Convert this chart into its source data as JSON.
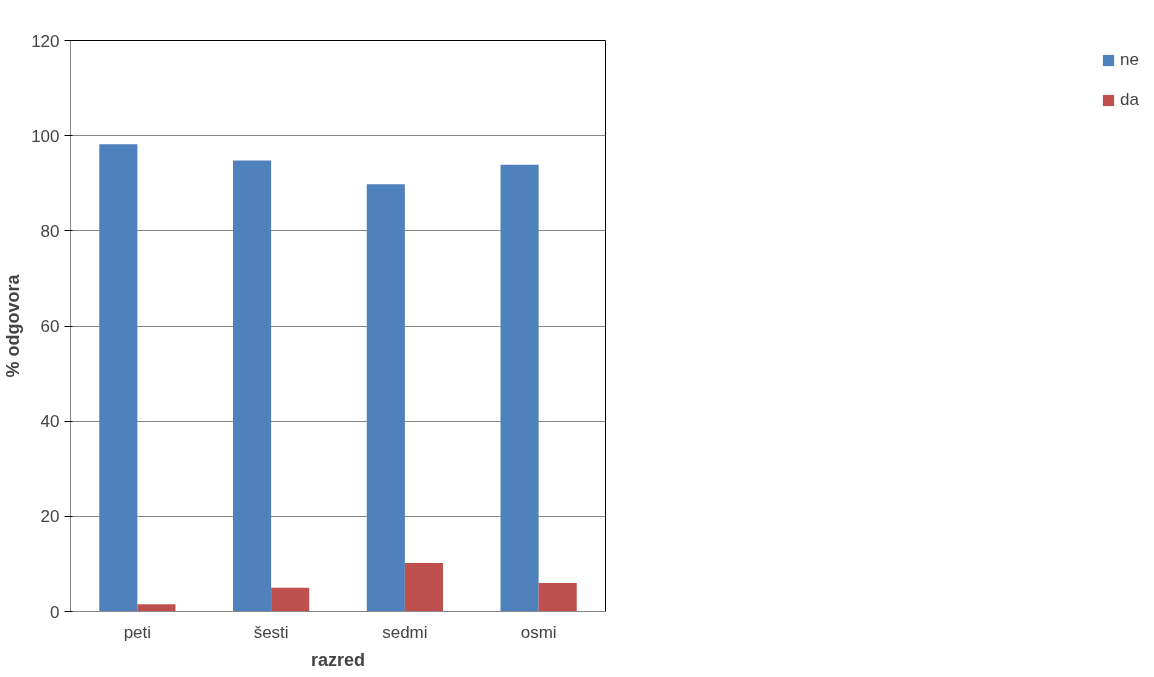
{
  "chart_data": {
    "type": "bar",
    "xlabel": "razred",
    "ylabel": "% odgovora",
    "categories": [
      "peti",
      "šesti",
      "sedmi",
      "osmi"
    ],
    "series": [
      {
        "name": "ne",
        "color": "#4f81bd",
        "values": [
          98.2,
          94.8,
          89.8,
          93.9
        ]
      },
      {
        "name": "da",
        "color": "#c0504d",
        "values": [
          1.5,
          5.0,
          10.2,
          6.0
        ]
      }
    ],
    "ylim": [
      0,
      120
    ],
    "yticks": [
      0,
      20,
      40,
      60,
      80,
      100,
      120
    ],
    "grid": "y",
    "legend": "right"
  }
}
